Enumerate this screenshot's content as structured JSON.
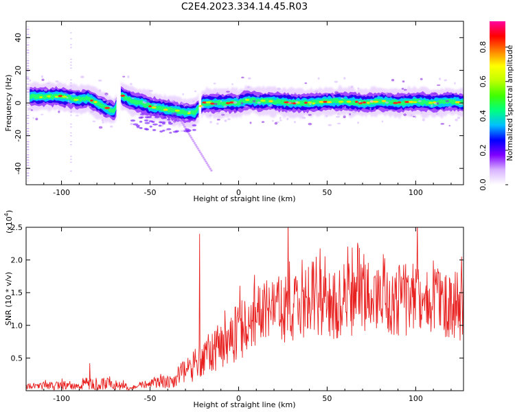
{
  "title": "C2E4.2023.334.14.45.R03",
  "chart_data": [
    {
      "type": "heatmap",
      "name": "spectrogram",
      "title": "C2E4.2023.334.14.45.R03",
      "xlabel": "Height of straight line (km)",
      "ylabel": "Frequency (Hz)",
      "xlim": [
        -120,
        127
      ],
      "ylim": [
        -50,
        50
      ],
      "x_ticks": [
        "-100",
        "-50",
        "0",
        "50",
        "100"
      ],
      "x_tick_values": [
        -100,
        -50,
        0,
        50,
        100
      ],
      "y_ticks": [
        "40",
        "20",
        "0",
        "-20",
        "-40"
      ],
      "y_tick_values": [
        40,
        20,
        0,
        -20,
        -40
      ],
      "colorbar": {
        "label": "Normalized spectral amplitude",
        "range": [
          0,
          0.95
        ],
        "ticks": [
          "0.0",
          "0.2",
          "0.4",
          "0.6",
          "0.8"
        ],
        "tick_values": [
          0.0,
          0.2,
          0.4,
          0.6,
          0.8
        ],
        "colors": [
          "#ffffff",
          "#d9b3ff",
          "#8000ff",
          "#0000ff",
          "#00c0ff",
          "#00ff80",
          "#40ff00",
          "#c0ff00",
          "#ffff00",
          "#ff8000",
          "#ff0000",
          "#ff00a0"
        ]
      },
      "ridge": {
        "x": [
          -118,
          -110,
          -100,
          -95,
          -90,
          -85,
          -80,
          -75,
          -70,
          -67,
          -65,
          -60,
          -55,
          -50,
          -45,
          -40,
          -35,
          -30,
          -25,
          -20,
          -15,
          -10,
          -5,
          0,
          5,
          10,
          20,
          30,
          40,
          50,
          60,
          70,
          80,
          90,
          100,
          110,
          120,
          127
        ],
        "y": [
          4,
          4,
          4,
          3,
          2,
          3,
          0,
          -3,
          -5,
          5,
          4,
          1,
          0,
          -2,
          -3,
          -4,
          -5,
          -6,
          -6,
          0,
          0,
          0,
          0,
          0,
          2,
          1,
          1,
          0,
          0,
          1,
          1,
          0,
          1,
          0,
          1,
          0,
          1,
          0
        ]
      }
    },
    {
      "type": "line",
      "name": "snr",
      "xlabel": "Height of straight line (km)",
      "ylabel": "SNR (10 * v/v)",
      "y_scale_label": "(x10",
      "y_scale_exponent": "4",
      "color": "#e8201f",
      "xlim": [
        -120,
        127
      ],
      "ylim": [
        0,
        2.5
      ],
      "x_ticks": [
        "-100",
        "-50",
        "0",
        "50",
        "100"
      ],
      "x_tick_values": [
        -100,
        -50,
        0,
        50,
        100
      ],
      "y_ticks": [
        "0.5",
        "1.0",
        "1.5",
        "2.0",
        "2.5"
      ],
      "y_tick_values": [
        0.5,
        1.0,
        1.5,
        2.0,
        2.5
      ],
      "envelope": {
        "x": [
          -120,
          -100,
          -90,
          -85,
          -80,
          -70,
          -60,
          -55,
          -50,
          -45,
          -40,
          -35,
          -30,
          -25,
          -20,
          -15,
          -10,
          -5,
          0,
          5,
          10,
          20,
          30,
          40,
          50,
          60,
          70,
          80,
          90,
          100,
          110,
          120,
          127
        ],
        "mean": [
          0.06,
          0.08,
          0.06,
          0.12,
          0.1,
          0.1,
          0.04,
          0.08,
          0.1,
          0.12,
          0.15,
          0.2,
          0.3,
          0.4,
          0.5,
          0.6,
          0.7,
          0.8,
          0.9,
          1.0,
          1.1,
          1.2,
          1.3,
          1.35,
          1.35,
          1.3,
          1.45,
          1.45,
          1.4,
          1.4,
          1.4,
          1.35,
          1.3
        ],
        "spread": [
          0.05,
          0.07,
          0.04,
          0.12,
          0.1,
          0.1,
          0.04,
          0.06,
          0.08,
          0.1,
          0.12,
          0.15,
          0.2,
          0.25,
          0.3,
          0.35,
          0.35,
          0.4,
          0.45,
          0.45,
          0.5,
          0.5,
          0.55,
          0.55,
          0.55,
          0.55,
          0.6,
          0.6,
          0.6,
          0.6,
          0.55,
          0.55,
          0.55
        ]
      },
      "spikes": [
        {
          "x": -84,
          "y": 0.42
        },
        {
          "x": -22,
          "y": 2.4
        },
        {
          "x": 28,
          "y": 2.6
        },
        {
          "x": 101,
          "y": 2.6
        },
        {
          "x": 113,
          "y": 1.82
        }
      ]
    }
  ]
}
